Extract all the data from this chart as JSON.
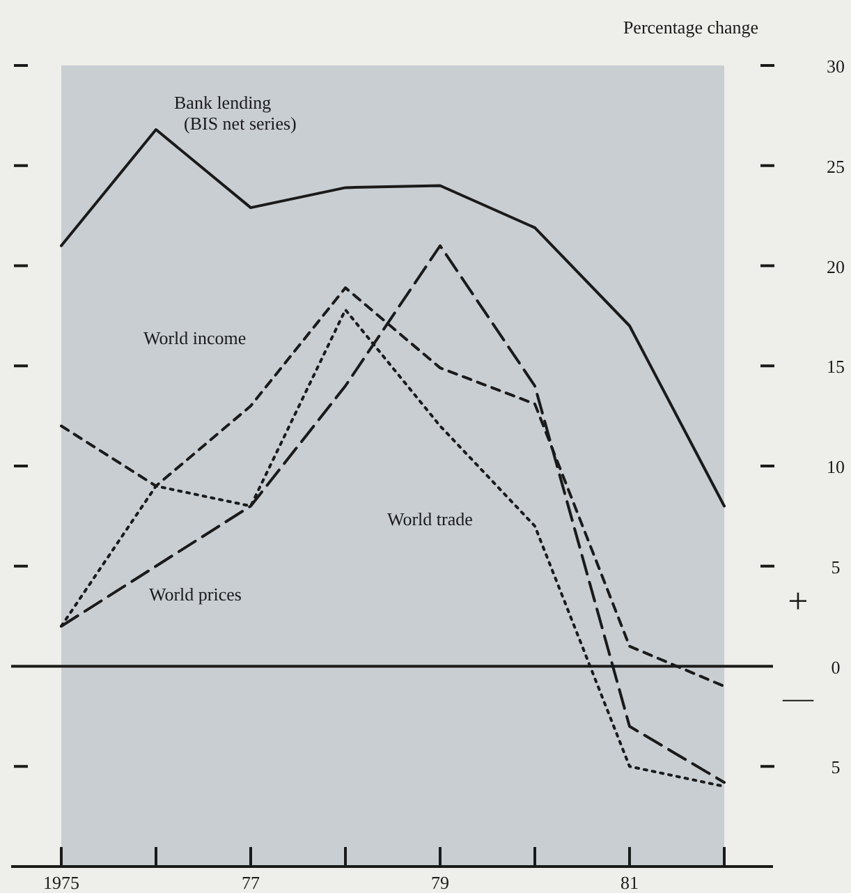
{
  "chart_data": {
    "type": "line",
    "ylabel": "Percentage change",
    "x": [
      1975,
      1976,
      1977,
      1978,
      1979,
      1980,
      1981,
      1982
    ],
    "xlim": [
      1975,
      1982
    ],
    "xticks": [
      1975,
      {
        "value": 1976,
        "label": null
      },
      {
        "value": 1977,
        "label": "77"
      },
      {
        "value": 1978,
        "label": null
      },
      {
        "value": 1979,
        "label": "79"
      },
      {
        "value": 1980,
        "label": null
      },
      {
        "value": 1981,
        "label": "81"
      },
      {
        "value": 1982,
        "label": null
      }
    ],
    "ylim": [
      -10,
      30
    ],
    "yticks": [
      {
        "value": -5,
        "label": "5"
      },
      0,
      5,
      10,
      15,
      20,
      25,
      30
    ],
    "grid": false,
    "legend": false,
    "marker": "none",
    "ref_lines": [
      {
        "axis": "y",
        "value": 0,
        "color": "#1a1a1a"
      }
    ],
    "annotations": [
      "+",
      "—"
    ],
    "series": [
      {
        "name": "Bank lending\n(BIS net series)",
        "color": "#1a1a1a",
        "line_style": "solid",
        "values": [
          21,
          26.8,
          22.9,
          23.9,
          24,
          21.9,
          17,
          8
        ]
      },
      {
        "name": "World income",
        "color": "#1a1a1a",
        "line_style": "dashed",
        "values": [
          12,
          9,
          13,
          18.9,
          14.9,
          13.1,
          1,
          -1
        ]
      },
      {
        "name": "World trade",
        "color": "#1a1a1a",
        "line_style": "dotted",
        "values": [
          2,
          9,
          8,
          17.8,
          12,
          7,
          -5,
          -6
        ]
      },
      {
        "name": "World prices",
        "color": "#1a1a1a",
        "line_style": "dashed",
        "values": [
          2,
          5,
          8,
          14,
          21,
          14,
          -3,
          -5.8
        ]
      }
    ]
  }
}
